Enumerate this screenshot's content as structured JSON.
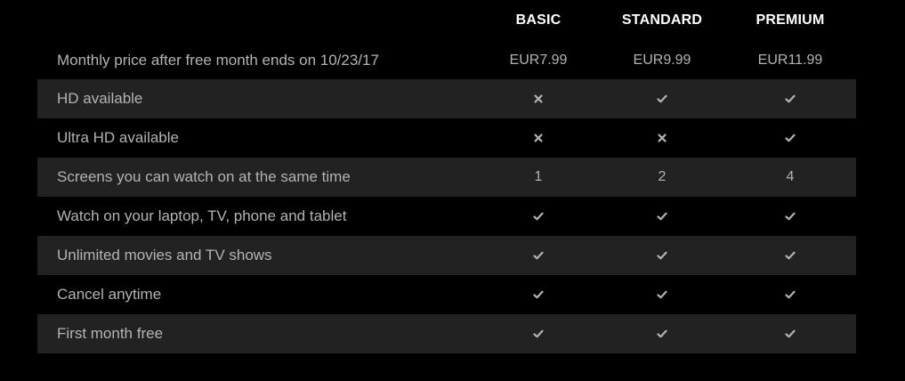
{
  "plans": [
    {
      "name": "BASIC"
    },
    {
      "name": "STANDARD"
    },
    {
      "name": "PREMIUM"
    }
  ],
  "rows": [
    {
      "label": "Monthly price after free month ends on 10/23/17",
      "values": [
        "EUR7.99",
        "EUR9.99",
        "EUR11.99"
      ],
      "type": "text"
    },
    {
      "label": "HD available",
      "values": [
        "no",
        "yes",
        "yes"
      ],
      "type": "icon"
    },
    {
      "label": "Ultra HD available",
      "values": [
        "no",
        "no",
        "yes"
      ],
      "type": "icon"
    },
    {
      "label": "Screens you can watch on at the same time",
      "values": [
        "1",
        "2",
        "4"
      ],
      "type": "text"
    },
    {
      "label": "Watch on your laptop, TV, phone and tablet",
      "values": [
        "yes",
        "yes",
        "yes"
      ],
      "type": "icon"
    },
    {
      "label": "Unlimited movies and TV shows",
      "values": [
        "yes",
        "yes",
        "yes"
      ],
      "type": "icon"
    },
    {
      "label": "Cancel anytime",
      "values": [
        "yes",
        "yes",
        "yes"
      ],
      "type": "icon"
    },
    {
      "label": "First month free",
      "values": [
        "yes",
        "yes",
        "yes"
      ],
      "type": "icon"
    }
  ],
  "colors": {
    "background": "#000000",
    "stripe": "#222222",
    "header_text": "#ffffff",
    "body_text": "#b3b3b3",
    "icon": "#b3b3b3"
  }
}
